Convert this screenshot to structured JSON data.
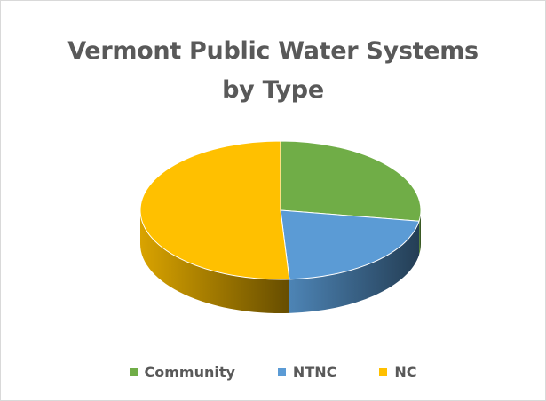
{
  "chart_data": {
    "type": "pie",
    "style": "3d",
    "title": "Vermont Public Water Systems by Type",
    "title_lines": [
      "Vermont Public Water Systems",
      "by Type"
    ],
    "series": [
      {
        "name": "",
        "slices": [
          {
            "label": "Community",
            "value": 27.5,
            "color": "#70AD47"
          },
          {
            "label": "NTNC",
            "value": 21.5,
            "color": "#5B9BD5"
          },
          {
            "label": "NC",
            "value": 51.0,
            "color": "#FFC000"
          }
        ]
      }
    ],
    "legend": {
      "placement": "bottom",
      "entries": [
        "Community",
        "NTNC",
        "NC"
      ]
    },
    "grid": false
  }
}
